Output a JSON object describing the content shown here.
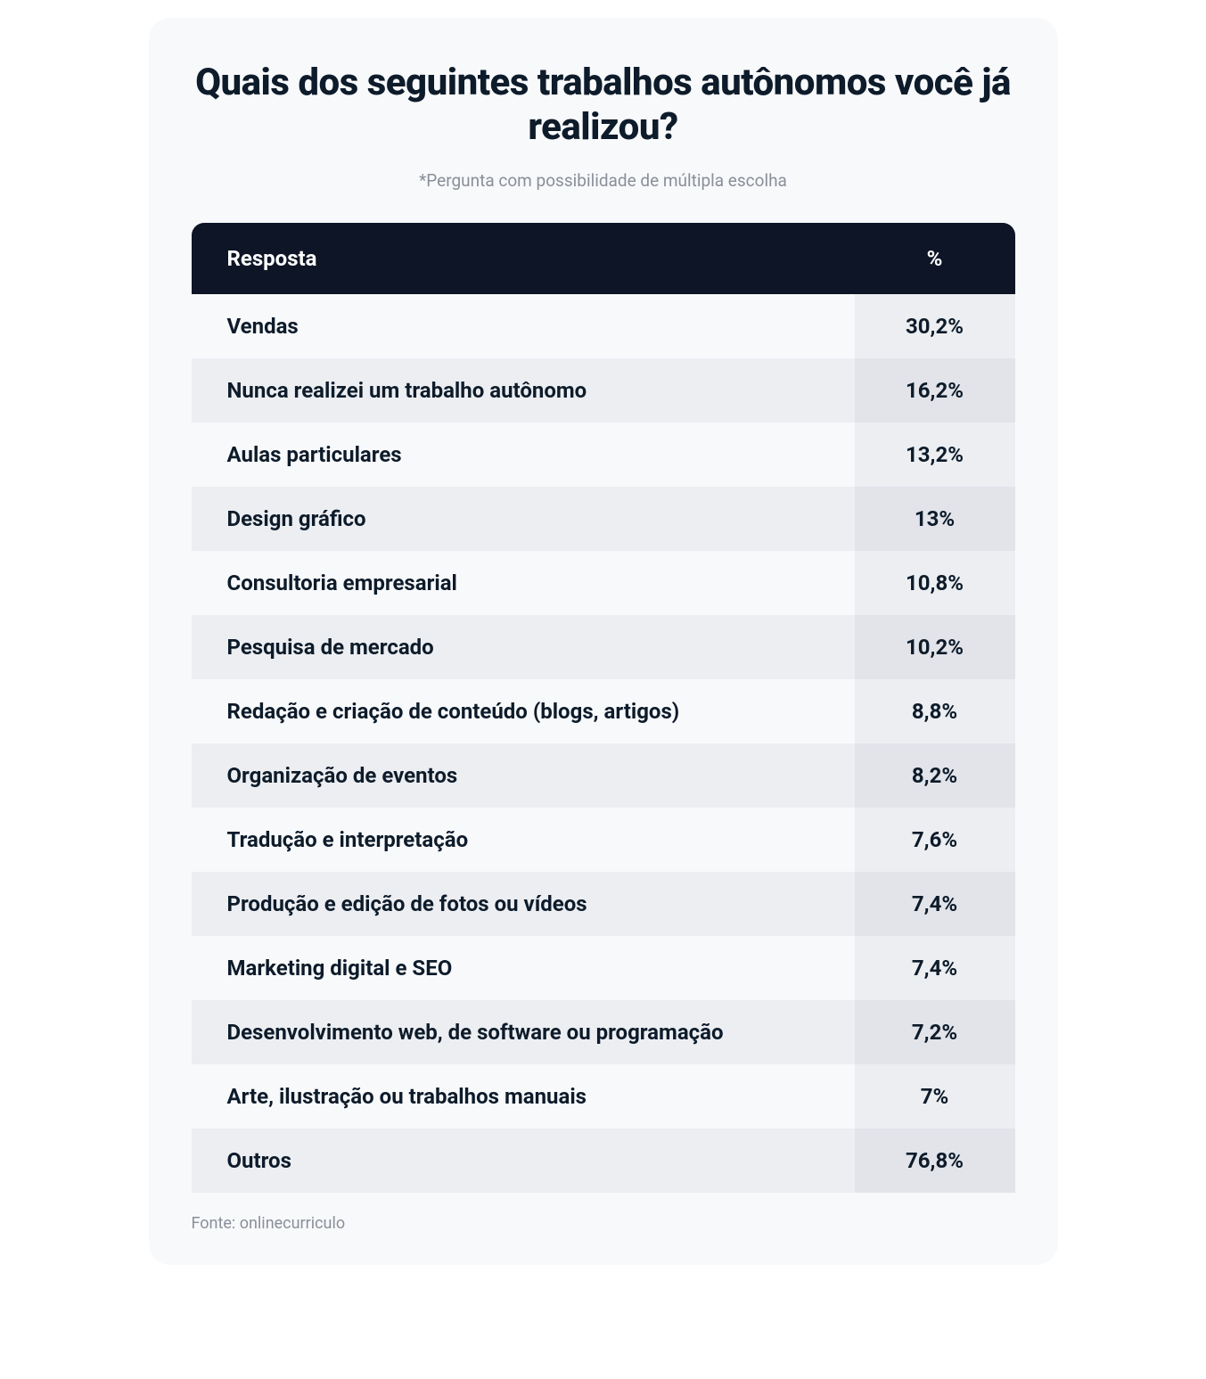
{
  "title": "Quais dos seguintes trabalhos autônomos você já realizou?",
  "subtitle": "*Pergunta com possibilidade de múltipla escolha",
  "source_label": "Fonte: onlinecurriculo",
  "table": {
    "type": "table",
    "header_bg": "#0d1526",
    "header_text_color": "#ffffff",
    "row_odd_bg": "#f8f9fb",
    "row_odd_pct_bg": "#eceef2",
    "row_even_bg": "#eceef2",
    "row_even_pct_bg": "#e2e4ea",
    "text_color": "#0d1b2a",
    "font_size_pt": 18,
    "columns": [
      "Resposta",
      "%"
    ],
    "rows": [
      {
        "resposta": "Vendas",
        "pct": "30,2%"
      },
      {
        "resposta": "Nunca realizei um trabalho autônomo",
        "pct": "16,2%"
      },
      {
        "resposta": "Aulas particulares",
        "pct": "13,2%"
      },
      {
        "resposta": "Design gráfico",
        "pct": "13%"
      },
      {
        "resposta": "Consultoria empresarial",
        "pct": "10,8%"
      },
      {
        "resposta": "Pesquisa de mercado",
        "pct": "10,2%"
      },
      {
        "resposta": "Redação e criação de conteúdo (blogs, artigos)",
        "pct": "8,8%"
      },
      {
        "resposta": "Organização de eventos",
        "pct": "8,2%"
      },
      {
        "resposta": "Tradução e interpretação",
        "pct": "7,6%"
      },
      {
        "resposta": "Produção e edição de fotos ou vídeos",
        "pct": "7,4%"
      },
      {
        "resposta": "Marketing digital e SEO",
        "pct": "7,4%"
      },
      {
        "resposta": "Desenvolvimento web, de software ou programação",
        "pct": "7,2%"
      },
      {
        "resposta": "Arte, ilustração ou trabalhos manuais",
        "pct": "7%"
      },
      {
        "resposta": "Outros",
        "pct": "76,8%"
      }
    ]
  },
  "card_bg": "#f8f9fb",
  "subtitle_color": "#8a8f99"
}
